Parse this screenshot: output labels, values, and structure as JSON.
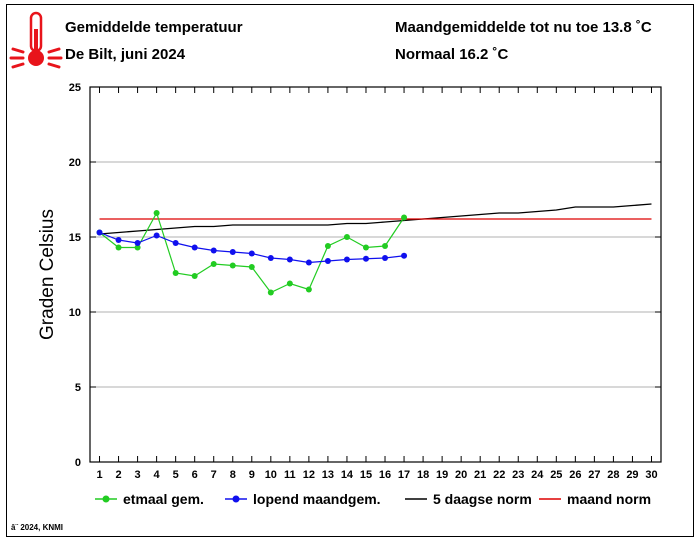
{
  "header": {
    "title": "Gemiddelde temperatuur",
    "subtitle": "De Bilt, juni 2024",
    "month_avg": "Maandgemiddelde tot nu toe 13.8 ˚C",
    "normal": "Normaal 16.2 ˚C",
    "icon": "thermometer-icon"
  },
  "copyright": "â¨ 2024, KNMI",
  "chart_data": {
    "type": "line",
    "ylabel": "Graden Celsius",
    "xlabel": "",
    "xlim": [
      0.5,
      30.5
    ],
    "ylim": [
      0,
      25
    ],
    "xticks": [
      1,
      2,
      3,
      4,
      5,
      6,
      7,
      8,
      9,
      10,
      11,
      12,
      13,
      14,
      15,
      16,
      17,
      18,
      19,
      20,
      21,
      22,
      23,
      24,
      25,
      26,
      27,
      28,
      29,
      30
    ],
    "yticks": [
      0,
      5,
      10,
      15,
      20,
      25
    ],
    "grid": true,
    "legend_position": "bottom",
    "series": [
      {
        "name": "etmaal gem.",
        "color": "#22cc22",
        "marker": true,
        "x": [
          1,
          2,
          3,
          4,
          5,
          6,
          7,
          8,
          9,
          10,
          11,
          12,
          13,
          14,
          15,
          16,
          17
        ],
        "y": [
          15.3,
          14.3,
          14.3,
          16.6,
          12.6,
          12.4,
          13.2,
          13.1,
          13.0,
          11.3,
          11.9,
          11.5,
          14.4,
          15.0,
          14.3,
          14.4,
          16.3
        ]
      },
      {
        "name": "lopend maandgem.",
        "color": "#1010ee",
        "marker": true,
        "x": [
          1,
          2,
          3,
          4,
          5,
          6,
          7,
          8,
          9,
          10,
          11,
          12,
          13,
          14,
          15,
          16,
          17
        ],
        "y": [
          15.3,
          14.8,
          14.6,
          15.1,
          14.6,
          14.3,
          14.1,
          14.0,
          13.9,
          13.6,
          13.5,
          13.3,
          13.4,
          13.5,
          13.55,
          13.6,
          13.75
        ]
      },
      {
        "name": "5 daagse norm",
        "color": "#000000",
        "marker": false,
        "x": [
          1,
          2,
          3,
          4,
          5,
          6,
          7,
          8,
          9,
          10,
          11,
          12,
          13,
          14,
          15,
          16,
          17,
          18,
          19,
          20,
          21,
          22,
          23,
          24,
          25,
          26,
          27,
          28,
          29,
          30
        ],
        "y": [
          15.2,
          15.3,
          15.4,
          15.5,
          15.6,
          15.7,
          15.7,
          15.8,
          15.8,
          15.8,
          15.8,
          15.8,
          15.8,
          15.9,
          15.9,
          16.0,
          16.1,
          16.2,
          16.3,
          16.4,
          16.5,
          16.6,
          16.6,
          16.7,
          16.8,
          17.0,
          17.0,
          17.0,
          17.1,
          17.2
        ]
      },
      {
        "name": "maand norm",
        "color": "#dd0000",
        "marker": false,
        "x": [
          1,
          30
        ],
        "y": [
          16.2,
          16.2
        ]
      }
    ]
  }
}
